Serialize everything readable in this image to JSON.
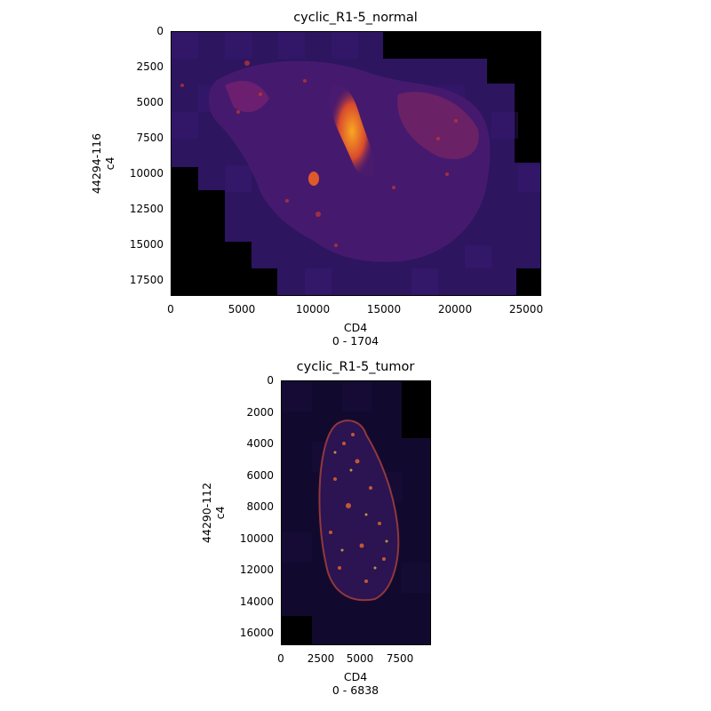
{
  "panels": [
    {
      "title": "cyclic_R1-5_normal",
      "xlabel": "CD4",
      "xrange_label": "0 - 1704",
      "ylabel_line1": "44294-116",
      "ylabel_line2": "c4",
      "xticks": [
        "0",
        "5000",
        "10000",
        "15000",
        "20000",
        "25000"
      ],
      "yticks": [
        "0",
        "2500",
        "5000",
        "7500",
        "10000",
        "12500",
        "15000",
        "17500"
      ],
      "colormap": "inferno"
    },
    {
      "title": "cyclic_R1-5_tumor",
      "xlabel": "CD4",
      "xrange_label": "0 - 6838",
      "ylabel_line1": "44290-112",
      "ylabel_line2": "c4",
      "xticks": [
        "0",
        "2500",
        "5000",
        "7500"
      ],
      "yticks": [
        "0",
        "2000",
        "4000",
        "6000",
        "8000",
        "10000",
        "12000",
        "14000",
        "16000"
      ],
      "colormap": "inferno"
    }
  ]
}
